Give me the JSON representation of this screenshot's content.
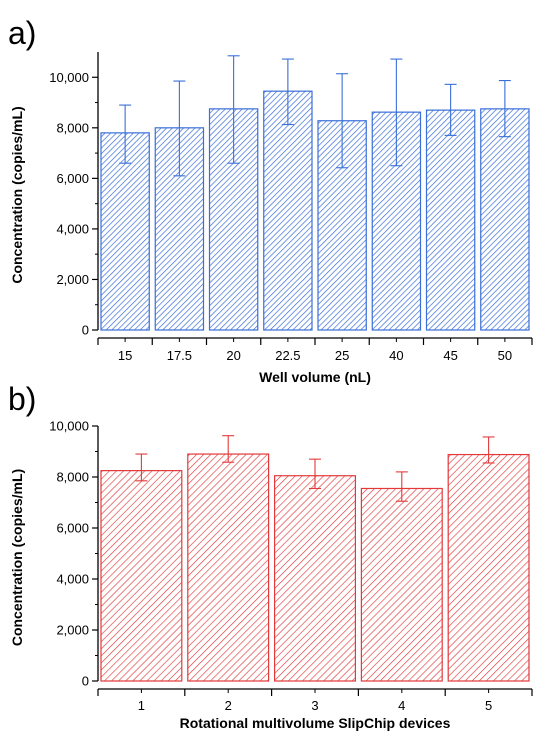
{
  "chart_data": [
    {
      "type": "bar",
      "panel_label": "a)",
      "color": "#3a6fd8",
      "pattern": "hatched",
      "xlabel": "Well volume (nL)",
      "ylabel": "Concentration (copies/mL)",
      "ylim": [
        0,
        11000
      ],
      "yticks": [
        0,
        2000,
        4000,
        6000,
        8000,
        10000
      ],
      "ytick_labels": [
        "0",
        "2,000",
        "4,000",
        "6,000",
        "8,000",
        "10,000"
      ],
      "categories": [
        "15",
        "17.5",
        "20",
        "22.5",
        "25",
        "40",
        "45",
        "50"
      ],
      "values": [
        7800,
        8000,
        8750,
        9450,
        8280,
        8620,
        8700,
        8750
      ],
      "error_low": [
        6600,
        6100,
        6600,
        8130,
        6420,
        6500,
        7700,
        7650
      ],
      "error_high": [
        8900,
        9850,
        10850,
        10720,
        10140,
        10720,
        9720,
        9870
      ],
      "grid": false,
      "legend": "none"
    },
    {
      "type": "bar",
      "panel_label": "b)",
      "color": "#e2393a",
      "pattern": "hatched",
      "xlabel": "Rotational multivolume SlipChip devices",
      "ylabel": "Concentration (copies/mL)",
      "ylim": [
        0,
        10000
      ],
      "yticks": [
        0,
        2000,
        4000,
        6000,
        8000,
        10000
      ],
      "ytick_labels": [
        "0",
        "2,000",
        "4,000",
        "6,000",
        "8,000",
        "10,000"
      ],
      "categories": [
        "1",
        "2",
        "3",
        "4",
        "5"
      ],
      "values": [
        8250,
        8900,
        8050,
        7550,
        8880
      ],
      "error_low": [
        7850,
        8580,
        7550,
        7050,
        8550
      ],
      "error_high": [
        8900,
        9620,
        8700,
        8200,
        9570
      ],
      "grid": false,
      "legend": "none"
    }
  ]
}
